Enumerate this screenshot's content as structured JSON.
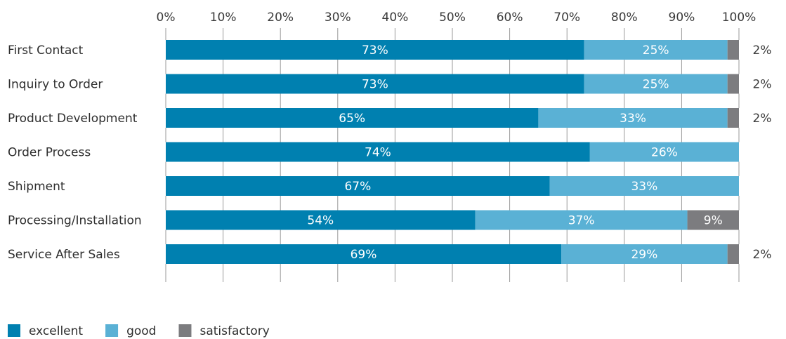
{
  "chart_data": {
    "type": "bar",
    "orientation": "horizontal",
    "stacked": true,
    "categories": [
      "First Contact",
      "Inquiry to Order",
      "Product Development",
      "Order Process",
      "Shipment",
      "Processing/Installation",
      "Service After Sales"
    ],
    "series": [
      {
        "name": "excellent",
        "color": "#0080b0",
        "values": [
          73,
          73,
          65,
          74,
          67,
          54,
          69
        ]
      },
      {
        "name": "good",
        "color": "#5ab1d5",
        "values": [
          25,
          25,
          33,
          26,
          33,
          37,
          29
        ]
      },
      {
        "name": "satisfactory",
        "color": "#7c7c7f",
        "values": [
          2,
          2,
          2,
          0,
          0,
          9,
          2
        ]
      }
    ],
    "data_labels": [
      [
        "73%",
        "25%",
        "2%"
      ],
      [
        "73%",
        "25%",
        "2%"
      ],
      [
        "65%",
        "33%",
        "2%"
      ],
      [
        "74%",
        "26%",
        ""
      ],
      [
        "67%",
        "33%",
        ""
      ],
      [
        "54%",
        "37%",
        "9%"
      ],
      [
        "69%",
        "29%",
        "2%"
      ]
    ],
    "x_ticks": [
      "0%",
      "10%",
      "20%",
      "30%",
      "40%",
      "50%",
      "60%",
      "70%",
      "80%",
      "90%",
      "100%"
    ],
    "xlim": [
      0,
      100
    ],
    "axis_position": "top",
    "legend_position": "bottom-left",
    "grid": "tick marks between bars"
  }
}
